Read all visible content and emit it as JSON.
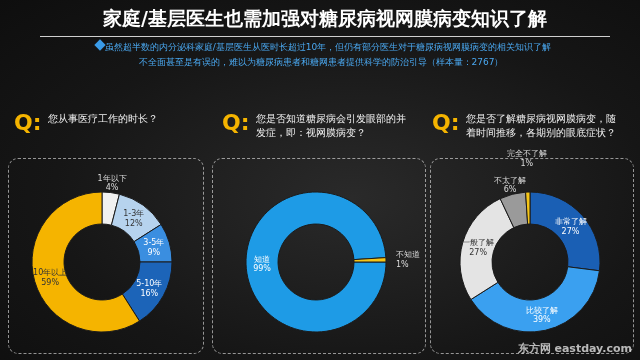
{
  "title": "家庭/基层医生也需加强对糖尿病视网膜病变知识了解",
  "subtitle": "虽然超半数的内分泌科家庭/基层医生从医时长超过10年，但仍有部分医生对于糖尿病视网膜病变的相关知识了解不全面甚至是有误的，难以为糖尿病患者和糖网患者提供科学的防治引导（样本量：2767）",
  "watermark": "东方网 eastday.com",
  "chart_data": [
    {
      "type": "pie",
      "title": "您从事医疗工作的时长？",
      "annotations": [
        "Q:"
      ],
      "categories": [
        "1年以下",
        "1-3年",
        "3-5年",
        "5-10年",
        "10年以上"
      ],
      "values": [
        4,
        12,
        9,
        16,
        59
      ],
      "value_labels": [
        "4%",
        "12%",
        "9%",
        "16%",
        "59%"
      ],
      "colors": [
        "#f0f0f0",
        "#b6d3ee",
        "#3a8ee0",
        "#1c64b8",
        "#f5b400"
      ],
      "data_labels": true
    },
    {
      "type": "pie",
      "title": "您是否知道糖尿病会引发眼部的并发症，即：视网膜病变？",
      "annotations": [
        "Q:"
      ],
      "categories": [
        "知道",
        "不知道"
      ],
      "values": [
        99,
        1
      ],
      "value_labels": [
        "99%",
        "1%"
      ],
      "colors": [
        "#1e9be6",
        "#f5c518"
      ],
      "data_labels": true
    },
    {
      "type": "pie",
      "title": "您是否了解糖尿病视网膜病变，随着时间推移，各期别的眼底症状？",
      "annotations": [
        "Q:"
      ],
      "categories": [
        "非常了解",
        "比较了解",
        "一般了解",
        "不太了解",
        "完全不了解"
      ],
      "values": [
        27,
        39,
        27,
        6,
        1
      ],
      "value_labels": [
        "27%",
        "39%",
        "27%",
        "6%",
        "1%"
      ],
      "colors": [
        "#1a5fb4",
        "#3aa0f0",
        "#e4e4e4",
        "#9a9a9a",
        "#f5c518"
      ],
      "data_labels": true
    }
  ]
}
